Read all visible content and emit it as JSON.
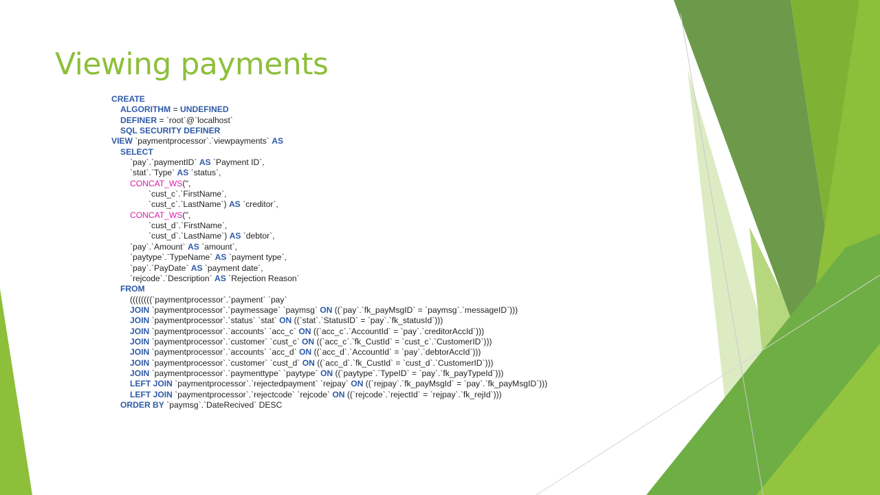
{
  "slide": {
    "title": "Viewing payments",
    "accent_color": "#8dbf3a",
    "keyword_color": "#2e5aa8",
    "function_color": "#d91aa8",
    "text_color": "#1f1f1f"
  },
  "code_lines": [
    {
      "indent": 0,
      "parts": [
        {
          "t": "CREATE",
          "k": "kw"
        }
      ]
    },
    {
      "indent": 1,
      "parts": [
        {
          "t": "ALGORITHM",
          "k": "kw"
        },
        {
          "t": " = "
        },
        {
          "t": "UNDEFINED",
          "k": "kw"
        }
      ]
    },
    {
      "indent": 1,
      "parts": [
        {
          "t": "DEFINER",
          "k": "kw"
        },
        {
          "t": " = `root`@`localhost`"
        }
      ]
    },
    {
      "indent": 1,
      "parts": [
        {
          "t": "SQL SECURITY DEFINER",
          "k": "kw"
        }
      ]
    },
    {
      "indent": 0,
      "parts": [
        {
          "t": "VIEW",
          "k": "kw"
        },
        {
          "t": " `paymentprocessor`.`viewpayments` "
        },
        {
          "t": "AS",
          "k": "kw"
        }
      ]
    },
    {
      "indent": 1,
      "parts": [
        {
          "t": "SELECT",
          "k": "kw"
        }
      ]
    },
    {
      "indent": 2,
      "parts": [
        {
          "t": "`pay`.`paymentID` "
        },
        {
          "t": "AS",
          "k": "kw"
        },
        {
          "t": " `Payment ID`,"
        }
      ]
    },
    {
      "indent": 2,
      "parts": [
        {
          "t": "`stat`.`Type` "
        },
        {
          "t": "AS",
          "k": "kw"
        },
        {
          "t": " `status`,"
        }
      ]
    },
    {
      "indent": 2,
      "parts": [
        {
          "t": "CONCAT_WS",
          "k": "fn"
        },
        {
          "t": "('',"
        }
      ]
    },
    {
      "indent": 4,
      "parts": [
        {
          "t": "`cust_c`.`FirstName`,"
        }
      ]
    },
    {
      "indent": 4,
      "parts": [
        {
          "t": "`cust_c`.`LastName`) "
        },
        {
          "t": "AS",
          "k": "kw"
        },
        {
          "t": " `creditor`,"
        }
      ]
    },
    {
      "indent": 2,
      "parts": [
        {
          "t": "CONCAT_WS",
          "k": "fn"
        },
        {
          "t": "('',"
        }
      ]
    },
    {
      "indent": 4,
      "parts": [
        {
          "t": "`cust_d`.`FirstName`,"
        }
      ]
    },
    {
      "indent": 4,
      "parts": [
        {
          "t": "`cust_d`.`LastName`) "
        },
        {
          "t": "AS",
          "k": "kw"
        },
        {
          "t": " `debtor`,"
        }
      ]
    },
    {
      "indent": 2,
      "parts": [
        {
          "t": "`pay`.`Amount` "
        },
        {
          "t": "AS",
          "k": "kw"
        },
        {
          "t": " `amount`,"
        }
      ]
    },
    {
      "indent": 2,
      "parts": [
        {
          "t": "`paytype`.`TypeName` "
        },
        {
          "t": "AS",
          "k": "kw"
        },
        {
          "t": " `payment type`,"
        }
      ]
    },
    {
      "indent": 2,
      "parts": [
        {
          "t": "`pay`.`PayDate` "
        },
        {
          "t": "AS",
          "k": "kw"
        },
        {
          "t": " `payment date`,"
        }
      ]
    },
    {
      "indent": 2,
      "parts": [
        {
          "t": "`rejcode`.`Description` "
        },
        {
          "t": "AS",
          "k": "kw"
        },
        {
          "t": " `Rejection Reason`"
        }
      ]
    },
    {
      "indent": 1,
      "parts": [
        {
          "t": "FROM",
          "k": "kw"
        }
      ]
    },
    {
      "indent": 2,
      "parts": [
        {
          "t": "((((((((`paymentprocessor`.`payment` `pay`"
        }
      ]
    },
    {
      "indent": 2,
      "parts": [
        {
          "t": "JOIN",
          "k": "kw"
        },
        {
          "t": " `paymentprocessor`.`paymessage` `paymsg` "
        },
        {
          "t": "ON",
          "k": "kw"
        },
        {
          "t": " ((`pay`.`fk_payMsgID` = `paymsg`.`messageID`)))"
        }
      ]
    },
    {
      "indent": 2,
      "parts": [
        {
          "t": "JOIN",
          "k": "kw"
        },
        {
          "t": " `paymentprocessor`.`status` `stat` "
        },
        {
          "t": "ON",
          "k": "kw"
        },
        {
          "t": " ((`stat`.`StatusID` = `pay`.`fk_statusId`)))"
        }
      ]
    },
    {
      "indent": 2,
      "parts": [
        {
          "t": "JOIN",
          "k": "kw"
        },
        {
          "t": " `paymentprocessor`.`accounts` `acc_c` "
        },
        {
          "t": "ON",
          "k": "kw"
        },
        {
          "t": " ((`acc_c`.`AccountId` = `pay`.`creditorAccId`)))"
        }
      ]
    },
    {
      "indent": 2,
      "parts": [
        {
          "t": "JOIN",
          "k": "kw"
        },
        {
          "t": " `paymentprocessor`.`customer` `cust_c` "
        },
        {
          "t": "ON",
          "k": "kw"
        },
        {
          "t": " ((`acc_c`.`fk_CustId` = `cust_c`.`CustomerID`)))"
        }
      ]
    },
    {
      "indent": 2,
      "parts": [
        {
          "t": "JOIN",
          "k": "kw"
        },
        {
          "t": " `paymentprocessor`.`accounts` `acc_d` "
        },
        {
          "t": "ON",
          "k": "kw"
        },
        {
          "t": " ((`acc_d`.`AccountId` = `pay`.`debtorAccId`)))"
        }
      ]
    },
    {
      "indent": 2,
      "parts": [
        {
          "t": "JOIN",
          "k": "kw"
        },
        {
          "t": " `paymentprocessor`.`customer` `cust_d` "
        },
        {
          "t": "ON",
          "k": "kw"
        },
        {
          "t": " ((`acc_d`.`fk_CustId` = `cust_d`.`CustomerID`)))"
        }
      ]
    },
    {
      "indent": 2,
      "parts": [
        {
          "t": "JOIN",
          "k": "kw"
        },
        {
          "t": " `paymentprocessor`.`paymenttype` `paytype` "
        },
        {
          "t": "ON",
          "k": "kw"
        },
        {
          "t": " ((`paytype`.`TypeID` = `pay`.`fk_payTypeId`)))"
        }
      ]
    },
    {
      "indent": 2,
      "parts": [
        {
          "t": "LEFT JOIN",
          "k": "kw"
        },
        {
          "t": " `paymentprocessor`.`rejectedpayment` `rejpay` "
        },
        {
          "t": "ON",
          "k": "kw"
        },
        {
          "t": " ((`rejpay`.`fk_payMsgId` = `pay`.`fk_payMsgID`)))"
        }
      ]
    },
    {
      "indent": 2,
      "parts": [
        {
          "t": "LEFT JOIN",
          "k": "kw"
        },
        {
          "t": " `paymentprocessor`.`rejectcode` `rejcode` "
        },
        {
          "t": "ON",
          "k": "kw"
        },
        {
          "t": " ((`rejcode`.`rejectId` = `rejpay`.`fk_rejId`)))"
        }
      ]
    },
    {
      "indent": 1,
      "parts": [
        {
          "t": "ORDER BY",
          "k": "kw"
        },
        {
          "t": " `paymsg`.`DateRecived` DESC"
        }
      ]
    }
  ]
}
